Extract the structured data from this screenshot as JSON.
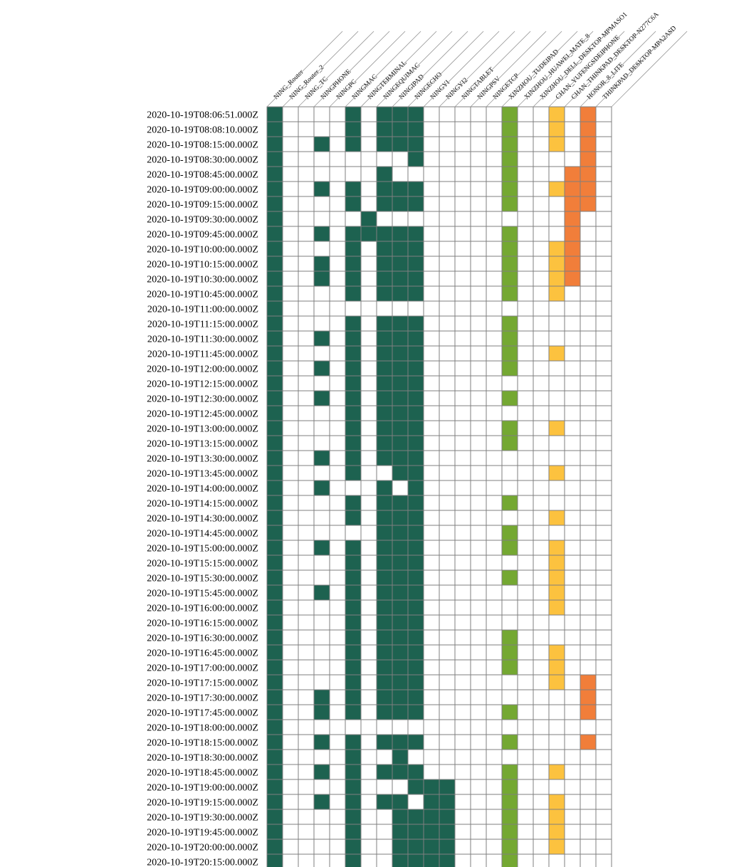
{
  "chart_data": {
    "type": "heatmap",
    "title": "",
    "colors": {
      "empty": "#ffffff",
      "grid": "#7f7f7f",
      "ning": "#1d6250",
      "xinzhou": "#74a832",
      "chan": "#fcc23f",
      "honor": "#f17e3a"
    },
    "columns": [
      {
        "label": "NING_Router",
        "group": "ning"
      },
      {
        "label": "NING_Router_2",
        "group": "ning"
      },
      {
        "label": "NING_TC",
        "group": "ning"
      },
      {
        "label": "NINGPHONE",
        "group": "ning"
      },
      {
        "label": "NINGPC",
        "group": "ning"
      },
      {
        "label": "NINGMAC",
        "group": "ning"
      },
      {
        "label": "NINGTERMINAL",
        "group": "ning"
      },
      {
        "label": "NINGEQUIMAC",
        "group": "ning"
      },
      {
        "label": "NINGIPAD",
        "group": "ning"
      },
      {
        "label": "NINGECHO",
        "group": "ning"
      },
      {
        "label": "NINGYI",
        "group": "ning"
      },
      {
        "label": "NINGYI2",
        "group": "ning"
      },
      {
        "label": "NINGTABLET",
        "group": "ning"
      },
      {
        "label": "NINGPSV",
        "group": "ning"
      },
      {
        "label": "NINGETCP",
        "group": "xinzhou"
      },
      {
        "label": "XINZHOU_TUDEIPAD",
        "group": "xinzhou"
      },
      {
        "label": "XINZHOU_HUAWEI_MATE_8",
        "group": "xinzhou"
      },
      {
        "label": "XINZHOU_DELL_DESKTOP-MPMASO1",
        "group": "chan"
      },
      {
        "label": "CHAN_YUFENGSDEIPHONE",
        "group": "chan"
      },
      {
        "label": "CHAN_THINKPAD_DESKTOP-N277C6A",
        "group": "honor"
      },
      {
        "label": "HONOR_8_LITE",
        "group": "honor"
      },
      {
        "label": "THINKPAD_DESKTOP-MPA2ASD",
        "group": "honor"
      }
    ],
    "rows": [
      {
        "time": "2020-10-19T08:06:51.000Z",
        "active": [
          0,
          5,
          7,
          8,
          9,
          15,
          18,
          20
        ]
      },
      {
        "time": "2020-10-19T08:08:10.000Z",
        "active": [
          0,
          5,
          7,
          8,
          9,
          15,
          18,
          20
        ]
      },
      {
        "time": "2020-10-19T08:15:00.000Z",
        "active": [
          0,
          3,
          5,
          7,
          8,
          9,
          15,
          18,
          20
        ]
      },
      {
        "time": "2020-10-19T08:30:00.000Z",
        "active": [
          0,
          9,
          15,
          20
        ]
      },
      {
        "time": "2020-10-19T08:45:00.000Z",
        "active": [
          0,
          7,
          15,
          19,
          20
        ]
      },
      {
        "time": "2020-10-19T09:00:00.000Z",
        "active": [
          0,
          3,
          5,
          7,
          8,
          9,
          15,
          18,
          19,
          20
        ]
      },
      {
        "time": "2020-10-19T09:15:00.000Z",
        "active": [
          0,
          5,
          7,
          8,
          9,
          15,
          19,
          20
        ]
      },
      {
        "time": "2020-10-19T09:30:00.000Z",
        "active": [
          0,
          6,
          19
        ]
      },
      {
        "time": "2020-10-19T09:45:00.000Z",
        "active": [
          0,
          3,
          5,
          6,
          7,
          8,
          9,
          15,
          19
        ]
      },
      {
        "time": "2020-10-19T10:00:00.000Z",
        "active": [
          0,
          5,
          7,
          8,
          9,
          15,
          18,
          19
        ]
      },
      {
        "time": "2020-10-19T10:15:00.000Z",
        "active": [
          0,
          3,
          5,
          7,
          8,
          9,
          15,
          18,
          19
        ]
      },
      {
        "time": "2020-10-19T10:30:00.000Z",
        "active": [
          0,
          3,
          5,
          7,
          8,
          9,
          15,
          18,
          19
        ]
      },
      {
        "time": "2020-10-19T10:45:00.000Z",
        "active": [
          0,
          5,
          7,
          8,
          9,
          15,
          18
        ]
      },
      {
        "time": "2020-10-19T11:00:00.000Z",
        "active": [
          0
        ]
      },
      {
        "time": "2020-10-19T11:15:00.000Z",
        "active": [
          0,
          5,
          7,
          8,
          9,
          15
        ]
      },
      {
        "time": "2020-10-19T11:30:00.000Z",
        "active": [
          0,
          3,
          5,
          7,
          8,
          9,
          15
        ]
      },
      {
        "time": "2020-10-19T11:45:00.000Z",
        "active": [
          0,
          5,
          7,
          8,
          9,
          15,
          18
        ]
      },
      {
        "time": "2020-10-19T12:00:00.000Z",
        "active": [
          0,
          3,
          5,
          7,
          8,
          9,
          15
        ]
      },
      {
        "time": "2020-10-19T12:15:00.000Z",
        "active": [
          0,
          5,
          7,
          8,
          9
        ]
      },
      {
        "time": "2020-10-19T12:30:00.000Z",
        "active": [
          0,
          3,
          5,
          7,
          8,
          9,
          15
        ]
      },
      {
        "time": "2020-10-19T12:45:00.000Z",
        "active": [
          0,
          5,
          7,
          8,
          9
        ]
      },
      {
        "time": "2020-10-19T13:00:00.000Z",
        "active": [
          0,
          5,
          7,
          8,
          9,
          15,
          18
        ]
      },
      {
        "time": "2020-10-19T13:15:00.000Z",
        "active": [
          0,
          5,
          7,
          8,
          9,
          15
        ]
      },
      {
        "time": "2020-10-19T13:30:00.000Z",
        "active": [
          0,
          3,
          5,
          7,
          8,
          9
        ]
      },
      {
        "time": "2020-10-19T13:45:00.000Z",
        "active": [
          0,
          5,
          8,
          9,
          18
        ]
      },
      {
        "time": "2020-10-19T14:00:00.000Z",
        "active": [
          0,
          3,
          7,
          9
        ]
      },
      {
        "time": "2020-10-19T14:15:00.000Z",
        "active": [
          0,
          5,
          7,
          8,
          9,
          15
        ]
      },
      {
        "time": "2020-10-19T14:30:00.000Z",
        "active": [
          0,
          5,
          7,
          8,
          9,
          18
        ]
      },
      {
        "time": "2020-10-19T14:45:00.000Z",
        "active": [
          0,
          7,
          8,
          9,
          15
        ]
      },
      {
        "time": "2020-10-19T15:00:00.000Z",
        "active": [
          0,
          3,
          5,
          7,
          8,
          9,
          15,
          18
        ]
      },
      {
        "time": "2020-10-19T15:15:00.000Z",
        "active": [
          0,
          5,
          7,
          8,
          9,
          18
        ]
      },
      {
        "time": "2020-10-19T15:30:00.000Z",
        "active": [
          0,
          5,
          7,
          8,
          9,
          15,
          18
        ]
      },
      {
        "time": "2020-10-19T15:45:00.000Z",
        "active": [
          0,
          3,
          5,
          7,
          8,
          9,
          18
        ]
      },
      {
        "time": "2020-10-19T16:00:00.000Z",
        "active": [
          0,
          5,
          7,
          8,
          9,
          18
        ]
      },
      {
        "time": "2020-10-19T16:15:00.000Z",
        "active": [
          0,
          5,
          7,
          8,
          9
        ]
      },
      {
        "time": "2020-10-19T16:30:00.000Z",
        "active": [
          0,
          5,
          7,
          8,
          9,
          15
        ]
      },
      {
        "time": "2020-10-19T16:45:00.000Z",
        "active": [
          0,
          5,
          7,
          8,
          9,
          15,
          18
        ]
      },
      {
        "time": "2020-10-19T17:00:00.000Z",
        "active": [
          0,
          5,
          7,
          8,
          9,
          15,
          18
        ]
      },
      {
        "time": "2020-10-19T17:15:00.000Z",
        "active": [
          0,
          5,
          7,
          8,
          9,
          18,
          20
        ]
      },
      {
        "time": "2020-10-19T17:30:00.000Z",
        "active": [
          0,
          3,
          5,
          7,
          8,
          9,
          20
        ]
      },
      {
        "time": "2020-10-19T17:45:00.000Z",
        "active": [
          0,
          3,
          5,
          7,
          8,
          9,
          15,
          20
        ]
      },
      {
        "time": "2020-10-19T18:00:00.000Z",
        "active": [
          0
        ]
      },
      {
        "time": "2020-10-19T18:15:00.000Z",
        "active": [
          0,
          3,
          5,
          7,
          8,
          9,
          15,
          20
        ]
      },
      {
        "time": "2020-10-19T18:30:00.000Z",
        "active": [
          0,
          5,
          8
        ]
      },
      {
        "time": "2020-10-19T18:45:00.000Z",
        "active": [
          0,
          3,
          5,
          7,
          8,
          9,
          15,
          18
        ]
      },
      {
        "time": "2020-10-19T19:00:00.000Z",
        "active": [
          0,
          5,
          9,
          10,
          11,
          15
        ]
      },
      {
        "time": "2020-10-19T19:15:00.000Z",
        "active": [
          0,
          3,
          5,
          7,
          8,
          10,
          11,
          15,
          18
        ]
      },
      {
        "time": "2020-10-19T19:30:00.000Z",
        "active": [
          0,
          5,
          8,
          9,
          10,
          11,
          15,
          18
        ]
      },
      {
        "time": "2020-10-19T19:45:00.000Z",
        "active": [
          0,
          5,
          8,
          9,
          10,
          11,
          15,
          18
        ]
      },
      {
        "time": "2020-10-19T20:00:00.000Z",
        "active": [
          0,
          5,
          8,
          9,
          10,
          11,
          15,
          18
        ]
      },
      {
        "time": "2020-10-19T20:15:00.000Z",
        "active": [
          0,
          5,
          8,
          9,
          10,
          11,
          15
        ]
      }
    ]
  }
}
